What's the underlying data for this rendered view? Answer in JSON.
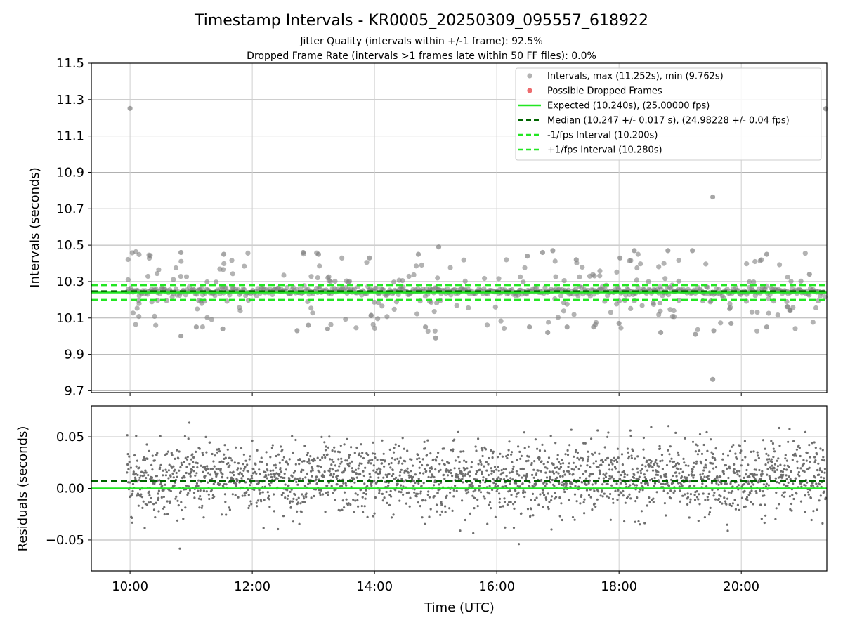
{
  "figure": {
    "title": "Timestamp Intervals - KR0005_20250309_095557_618922",
    "subtitle_1": "Jitter Quality (intervals within +/-1 frame): 92.5%",
    "subtitle_2": "Dropped Frame Rate (intervals >1 frames late within 50 FF files): 0.0%",
    "xlabel": "Time (UTC)"
  },
  "colors": {
    "points": "#808080",
    "dropped": "#e8474a",
    "expected": "#22e622",
    "median": "#006400",
    "bounds": "#22e622",
    "grid": "#b0b0b0"
  },
  "chart_data": [
    {
      "type": "scatter",
      "ylabel": "Intervals (seconds)",
      "xlim": [
        "09:22",
        "21:24"
      ],
      "ylim": [
        9.69,
        11.5
      ],
      "x_ticks": [
        "10:00",
        "12:00",
        "14:00",
        "16:00",
        "18:00",
        "20:00"
      ],
      "y_ticks": [
        "9.7",
        "9.9",
        "10.1",
        "10.3",
        "10.5",
        "10.7",
        "10.9",
        "11.1",
        "11.3",
        "11.5"
      ],
      "grid": true,
      "legend_position": "top-right",
      "legend": [
        {
          "label": "Intervals, max (11.252s), min (9.762s)",
          "kind": "dot-gray"
        },
        {
          "label": "Possible Dropped Frames",
          "kind": "dot-red"
        },
        {
          "label": "Expected (10.240s), (25.00000 fps)",
          "kind": "line-solid"
        },
        {
          "label": "Median (10.247 +/- 0.017 s), (24.98228 +/- 0.04 fps)",
          "kind": "line-median"
        },
        {
          "label": "-1/fps Interval (10.200s)",
          "kind": "line-dashed"
        },
        {
          "label": "+1/fps Interval (10.280s)",
          "kind": "line-dashed"
        }
      ],
      "reference_lines": {
        "expected": 10.24,
        "median": 10.247,
        "lower": 10.2,
        "upper": 10.28
      },
      "series_outliers": [
        {
          "x": "10:00",
          "y": 11.252
        },
        {
          "x": "21:23",
          "y": 11.25
        },
        {
          "x": "19:32",
          "y": 10.765
        },
        {
          "x": "19:32",
          "y": 9.762
        },
        {
          "x": "15:03",
          "y": 10.49
        },
        {
          "x": "10:50",
          "y": 10.46
        },
        {
          "x": "11:32",
          "y": 10.45
        },
        {
          "x": "12:50",
          "y": 10.46
        },
        {
          "x": "13:05",
          "y": 10.45
        },
        {
          "x": "14:43",
          "y": 10.45
        },
        {
          "x": "16:30",
          "y": 10.44
        },
        {
          "x": "16:45",
          "y": 10.46
        },
        {
          "x": "16:55",
          "y": 10.47
        },
        {
          "x": "18:15",
          "y": 10.47
        },
        {
          "x": "18:48",
          "y": 10.47
        },
        {
          "x": "19:12",
          "y": 10.47
        },
        {
          "x": "20:25",
          "y": 10.45
        },
        {
          "x": "13:55",
          "y": 10.43
        },
        {
          "x": "17:18",
          "y": 10.42
        },
        {
          "x": "18:01",
          "y": 10.43
        },
        {
          "x": "10:50",
          "y": 10.0
        },
        {
          "x": "11:05",
          "y": 10.05
        },
        {
          "x": "11:31",
          "y": 10.04
        },
        {
          "x": "12:44",
          "y": 10.03
        },
        {
          "x": "12:55",
          "y": 10.06
        },
        {
          "x": "13:14",
          "y": 10.04
        },
        {
          "x": "14:50",
          "y": 10.05
        },
        {
          "x": "15:00",
          "y": 9.99
        },
        {
          "x": "16:32",
          "y": 10.05
        },
        {
          "x": "16:50",
          "y": 10.02
        },
        {
          "x": "17:09",
          "y": 10.05
        },
        {
          "x": "17:35",
          "y": 10.05
        },
        {
          "x": "18:00",
          "y": 10.07
        },
        {
          "x": "18:41",
          "y": 10.02
        },
        {
          "x": "19:15",
          "y": 10.01
        },
        {
          "x": "19:33",
          "y": 10.03
        },
        {
          "x": "19:50",
          "y": 10.07
        },
        {
          "x": "20:25",
          "y": 10.05
        },
        {
          "x": "20:48",
          "y": 10.14
        },
        {
          "x": "21:07",
          "y": 10.34
        }
      ]
    },
    {
      "type": "scatter",
      "ylabel": "Residuals (seconds)",
      "xlim": [
        "09:22",
        "21:24"
      ],
      "ylim": [
        -0.08,
        0.08
      ],
      "x_ticks": [
        "10:00",
        "12:00",
        "14:00",
        "16:00",
        "18:00",
        "20:00"
      ],
      "y_ticks": [
        "−0.05",
        "0.00",
        "0.05"
      ],
      "grid": true,
      "reference_lines": {
        "expected": 0.0,
        "median": 0.007
      },
      "residual_center": 0.01,
      "residual_spread": 0.017
    }
  ]
}
